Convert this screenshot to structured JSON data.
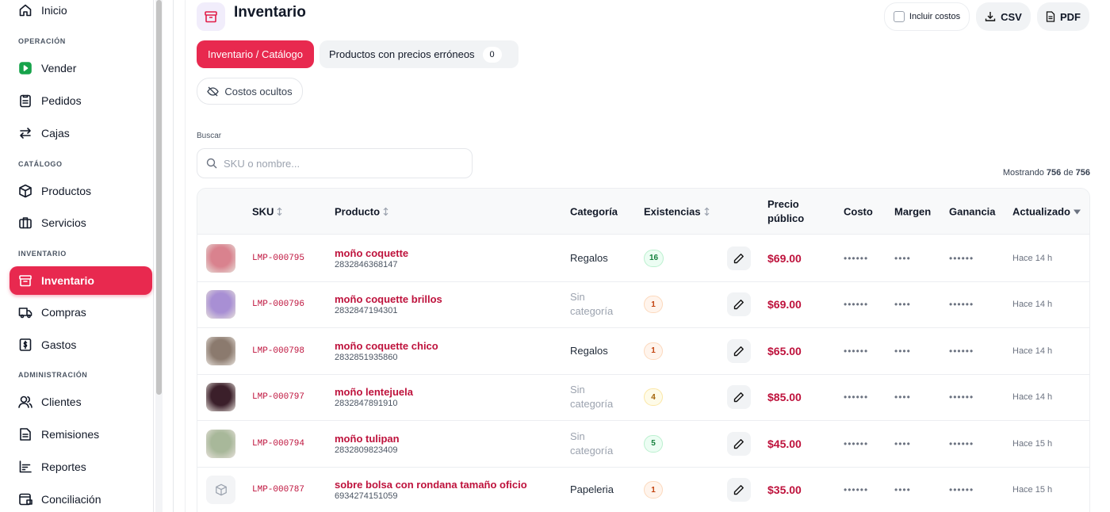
{
  "sidebar": [
    {
      "label": "Inicio"
    },
    {
      "heading": "OPERACIÓN"
    },
    {
      "label": "Vender"
    },
    {
      "label": "Pedidos"
    },
    {
      "label": "Cajas"
    },
    {
      "heading": "CATÁLOGO"
    },
    {
      "label": "Productos"
    },
    {
      "label": "Servicios"
    },
    {
      "heading": "INVENTARIO"
    },
    {
      "label": "Inventario",
      "active": true
    },
    {
      "label": "Compras"
    },
    {
      "label": "Gastos"
    },
    {
      "heading": "ADMINISTRACIÓN"
    },
    {
      "label": "Clientes"
    },
    {
      "label": "Remisiones"
    },
    {
      "label": "Reportes"
    },
    {
      "label": "Conciliación"
    }
  ],
  "header": {
    "title": "Inventario",
    "include_costs": "Incluir costos",
    "csv": "CSV",
    "pdf": "PDF"
  },
  "tabs": [
    {
      "label": "Inventario / Catálogo",
      "active": true
    },
    {
      "label": "Productos con precios erróneos",
      "count": 0
    }
  ],
  "hidden_costs": "Costos ocultos",
  "search": {
    "label": "Buscar",
    "placeholder": "SKU o nombre..."
  },
  "showing": {
    "prefix": "Mostrando",
    "shown": 756,
    "of": "de",
    "total": 756
  },
  "table": {
    "columns": [
      {
        "label": "SKU",
        "sort": "both"
      },
      {
        "label": "Producto",
        "sort": "both"
      },
      {
        "label": "Categoría"
      },
      {
        "label": "Existencias",
        "sort": "both"
      },
      {
        "label": "Precio público"
      },
      {
        "label": "Costo"
      },
      {
        "label": "Margen"
      },
      {
        "label": "Ganancia"
      },
      {
        "label": "Actualizado",
        "sort": "desc"
      }
    ],
    "rows": [
      {
        "sku": "LMP-000795",
        "name": "moño coquette",
        "barcode": "2832846368147",
        "category": "Regalos",
        "stock": 16,
        "price": "$69.00",
        "cost": "••••••",
        "margin": "••••",
        "profit": "••••••",
        "updated": "Hace 14 h"
      },
      {
        "sku": "LMP-000796",
        "name": "moño coquette brillos",
        "barcode": "2832847194301",
        "category": "Sin categoría",
        "stock": 1,
        "price": "$69.00",
        "cost": "••••••",
        "margin": "••••",
        "profit": "••••••",
        "updated": "Hace 14 h"
      },
      {
        "sku": "LMP-000798",
        "name": "moño coquette chico",
        "barcode": "2832851935860",
        "category": "Regalos",
        "stock": 1,
        "price": "$65.00",
        "cost": "••••••",
        "margin": "••••",
        "profit": "••••••",
        "updated": "Hace 14 h"
      },
      {
        "sku": "LMP-000797",
        "name": "moño lentejuela",
        "barcode": "2832847891910",
        "category": "Sin categoría",
        "stock": 4,
        "price": "$85.00",
        "cost": "••••••",
        "margin": "••••",
        "profit": "••••••",
        "updated": "Hace 14 h"
      },
      {
        "sku": "LMP-000794",
        "name": "moño tulipan",
        "barcode": "2832809823409",
        "category": "Sin categoría",
        "stock": 5,
        "price": "$45.00",
        "cost": "••••••",
        "margin": "••••",
        "profit": "••••••",
        "updated": "Hace 15 h"
      },
      {
        "sku": "LMP-000787",
        "name": "sobre bolsa con rondana tamaño oficio",
        "barcode": "6934274151059",
        "category": "Papeleria",
        "stock": 1,
        "price": "$35.00",
        "cost": "••••••",
        "margin": "••••",
        "profit": "••••••",
        "updated": "Hace 15 h"
      }
    ]
  }
}
